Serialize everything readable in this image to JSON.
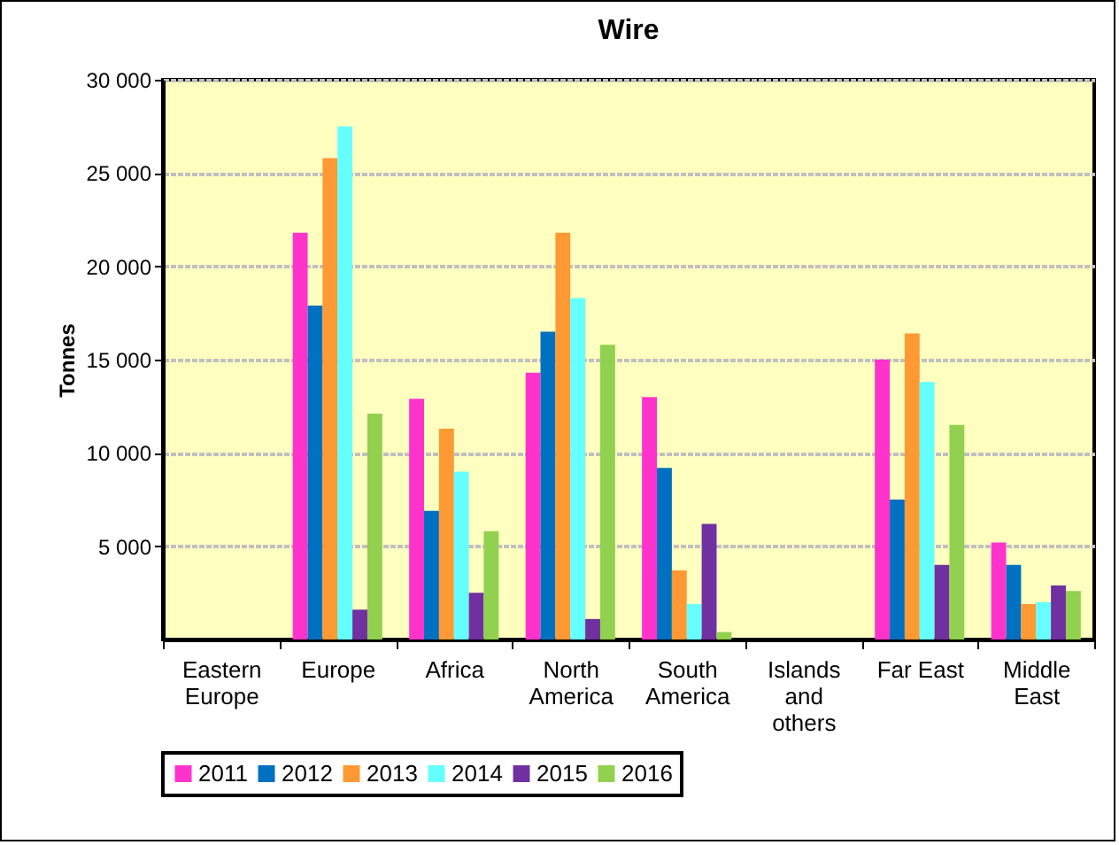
{
  "chart_data": {
    "type": "bar",
    "title": "Wire",
    "ylabel": "Tonnes",
    "categories": [
      "Eastern Europe",
      "Europe",
      "Africa",
      "North America",
      "South America",
      "Islands and others",
      "Far East",
      "Middle East"
    ],
    "series": [
      {
        "name": "2011",
        "color": "#ff33cc",
        "values": [
          null,
          21800,
          12900,
          14300,
          13000,
          null,
          15000,
          5200
        ]
      },
      {
        "name": "2012",
        "color": "#0070c0",
        "values": [
          null,
          17900,
          6900,
          16500,
          9200,
          null,
          7500,
          4000
        ]
      },
      {
        "name": "2013",
        "color": "#ff9933",
        "values": [
          null,
          25800,
          11300,
          21800,
          3700,
          null,
          16400,
          1900
        ]
      },
      {
        "name": "2014",
        "color": "#66ffff",
        "values": [
          null,
          27500,
          9000,
          18300,
          1900,
          null,
          13800,
          2000
        ]
      },
      {
        "name": "2015",
        "color": "#7030a0",
        "values": [
          null,
          1600,
          2500,
          1100,
          6200,
          null,
          4000,
          2900
        ]
      },
      {
        "name": "2016",
        "color": "#92d050",
        "values": [
          null,
          12100,
          5800,
          15800,
          400,
          null,
          11500,
          2600
        ]
      }
    ],
    "ylim": [
      0,
      30000
    ],
    "yticks": [
      {
        "value": 5000,
        "label": "5 000"
      },
      {
        "value": 10000,
        "label": "10 000"
      },
      {
        "value": 15000,
        "label": "15 000"
      },
      {
        "value": 20000,
        "label": "20 000"
      },
      {
        "value": 25000,
        "label": "25 000"
      },
      {
        "value": 30000,
        "label": "30 000"
      }
    ],
    "grid": "y",
    "legend": "bottom"
  }
}
